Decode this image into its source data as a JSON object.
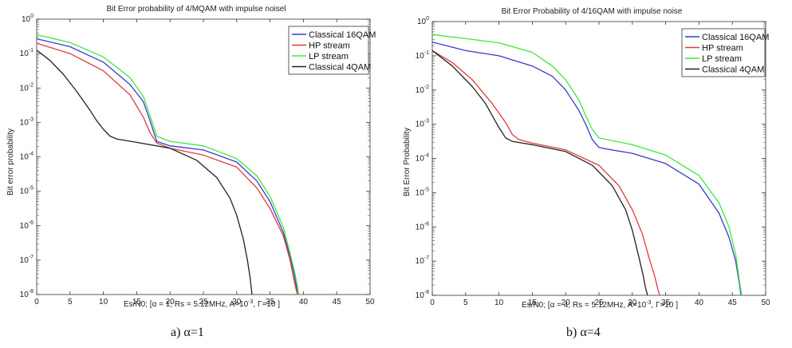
{
  "colors": {
    "blue": "#3a3acc",
    "red": "#e03a3a",
    "green": "#3ee83e",
    "black": "#222222"
  },
  "chart_data": [
    {
      "type": "line",
      "title": "Bit Error probability of 4/MQAM with impulse noisel",
      "xlabel_parts": {
        "pre": "Es/N0; [α = 1; Rs = 5.12MHz, A=10",
        "sup": "-3",
        "post": ", Γ=10 ]"
      },
      "ylabel": "Bit error probability",
      "xlim": [
        0,
        50
      ],
      "ylim_exp": [
        -8,
        0
      ],
      "yscale": "log",
      "xticks": [
        "0",
        "5",
        "10",
        "15",
        "20",
        "25",
        "30",
        "35",
        "40",
        "45",
        "50"
      ],
      "yticks_exp": [
        "0",
        "-1",
        "-2",
        "-3",
        "-4",
        "-5",
        "-6",
        "-7",
        "-8"
      ],
      "legend_position": "top-right",
      "caption": "a) α=1",
      "series": [
        {
          "name": "Classical 16QAM",
          "color": "blue",
          "x": [
            0,
            5,
            10,
            14,
            16,
            17,
            18,
            20,
            25,
            30,
            33,
            35,
            37,
            38,
            38.6,
            39,
            39.3
          ],
          "y_exp": [
            -0.57,
            -0.8,
            -1.25,
            -1.9,
            -2.4,
            -2.95,
            -3.55,
            -3.68,
            -3.8,
            -4.15,
            -4.7,
            -5.3,
            -6.2,
            -6.9,
            -7.4,
            -7.8,
            -8
          ]
        },
        {
          "name": "HP stream",
          "color": "red",
          "x": [
            0,
            5,
            10,
            14,
            16,
            17,
            18,
            20,
            25,
            30,
            33,
            35,
            37,
            38,
            38.5,
            38.9,
            39.1
          ],
          "y_exp": [
            -0.7,
            -1.0,
            -1.5,
            -2.2,
            -2.85,
            -3.3,
            -3.6,
            -3.75,
            -3.95,
            -4.3,
            -4.9,
            -5.5,
            -6.3,
            -7.0,
            -7.5,
            -7.85,
            -8
          ]
        },
        {
          "name": "LP stream",
          "color": "green",
          "x": [
            0,
            5,
            10,
            14,
            16,
            17,
            18,
            20,
            25,
            30,
            33,
            35,
            37,
            38,
            38.7,
            39.1,
            39.3
          ],
          "y_exp": [
            -0.45,
            -0.68,
            -1.1,
            -1.7,
            -2.25,
            -2.8,
            -3.4,
            -3.55,
            -3.68,
            -4.05,
            -4.55,
            -5.15,
            -6.05,
            -6.8,
            -7.35,
            -7.75,
            -8
          ]
        },
        {
          "name": "Classical 4QAM",
          "color": "black",
          "x": [
            0,
            2,
            4,
            6,
            8,
            9,
            10,
            11,
            12,
            15,
            20,
            24,
            27,
            29,
            30,
            31,
            31.6,
            32,
            32.3
          ],
          "y_exp": [
            -0.9,
            -1.2,
            -1.6,
            -2.1,
            -2.65,
            -2.95,
            -3.2,
            -3.4,
            -3.48,
            -3.58,
            -3.75,
            -4.1,
            -4.6,
            -5.2,
            -5.7,
            -6.4,
            -7.0,
            -7.5,
            -8
          ]
        }
      ]
    },
    {
      "type": "line",
      "title": "Bit Error Probability of 4/16QAM with impulse noise",
      "xlabel_parts": {
        "pre": "Es/N0; [α = 4; Rs = 5.12MHz, A=10",
        "sup": "-3",
        "post": ", Γ=10 ]"
      },
      "ylabel": "Bit Error Probability",
      "xlim": [
        0,
        50
      ],
      "ylim_exp": [
        -8,
        0
      ],
      "yscale": "log",
      "xticks": [
        "0",
        "5",
        "10",
        "15",
        "20",
        "25",
        "30",
        "35",
        "40",
        "45",
        "50"
      ],
      "yticks_exp": [
        "0",
        "-1",
        "-2",
        "-3",
        "-4",
        "-5",
        "-6",
        "-7",
        "-8"
      ],
      "legend_position": "top-right",
      "caption": "b) α=4",
      "series": [
        {
          "name": "Classical 16QAM",
          "color": "blue",
          "x": [
            0,
            5,
            10,
            15,
            18,
            20,
            22,
            23,
            24,
            25,
            26,
            30,
            35,
            40,
            43,
            44.5,
            45.5,
            46,
            46.3
          ],
          "y_exp": [
            -0.6,
            -0.85,
            -1.0,
            -1.3,
            -1.6,
            -2.0,
            -2.6,
            -3.0,
            -3.45,
            -3.68,
            -3.72,
            -3.85,
            -4.15,
            -4.75,
            -5.6,
            -6.3,
            -7.0,
            -7.6,
            -8
          ]
        },
        {
          "name": "HP stream",
          "color": "red",
          "x": [
            0,
            3,
            6,
            9,
            11,
            12,
            13,
            15,
            20,
            25,
            28,
            30,
            31.5,
            32.5,
            33.3,
            33.8,
            34.1
          ],
          "y_exp": [
            -0.85,
            -1.2,
            -1.7,
            -2.4,
            -2.95,
            -3.3,
            -3.45,
            -3.55,
            -3.75,
            -4.2,
            -4.8,
            -5.5,
            -6.2,
            -6.9,
            -7.4,
            -7.8,
            -8
          ]
        },
        {
          "name": "LP stream",
          "color": "green",
          "x": [
            0,
            5,
            10,
            15,
            18,
            20,
            22,
            23,
            24,
            25,
            27,
            30,
            35,
            40,
            43,
            44.5,
            45.5,
            46,
            46.4
          ],
          "y_exp": [
            -0.38,
            -0.5,
            -0.62,
            -0.9,
            -1.3,
            -1.7,
            -2.3,
            -2.75,
            -3.15,
            -3.4,
            -3.48,
            -3.6,
            -3.9,
            -4.5,
            -5.3,
            -6.0,
            -6.8,
            -7.5,
            -8
          ]
        },
        {
          "name": "Classical 4QAM",
          "color": "black",
          "x": [
            0,
            3,
            6,
            8,
            9,
            10,
            11,
            12,
            15,
            20,
            24,
            27,
            29,
            30,
            31,
            31.6,
            32,
            32.3
          ],
          "y_exp": [
            -0.85,
            -1.3,
            -1.9,
            -2.4,
            -2.75,
            -3.1,
            -3.4,
            -3.5,
            -3.6,
            -3.8,
            -4.2,
            -4.8,
            -5.5,
            -6.1,
            -6.9,
            -7.4,
            -7.8,
            -8
          ]
        }
      ]
    }
  ]
}
